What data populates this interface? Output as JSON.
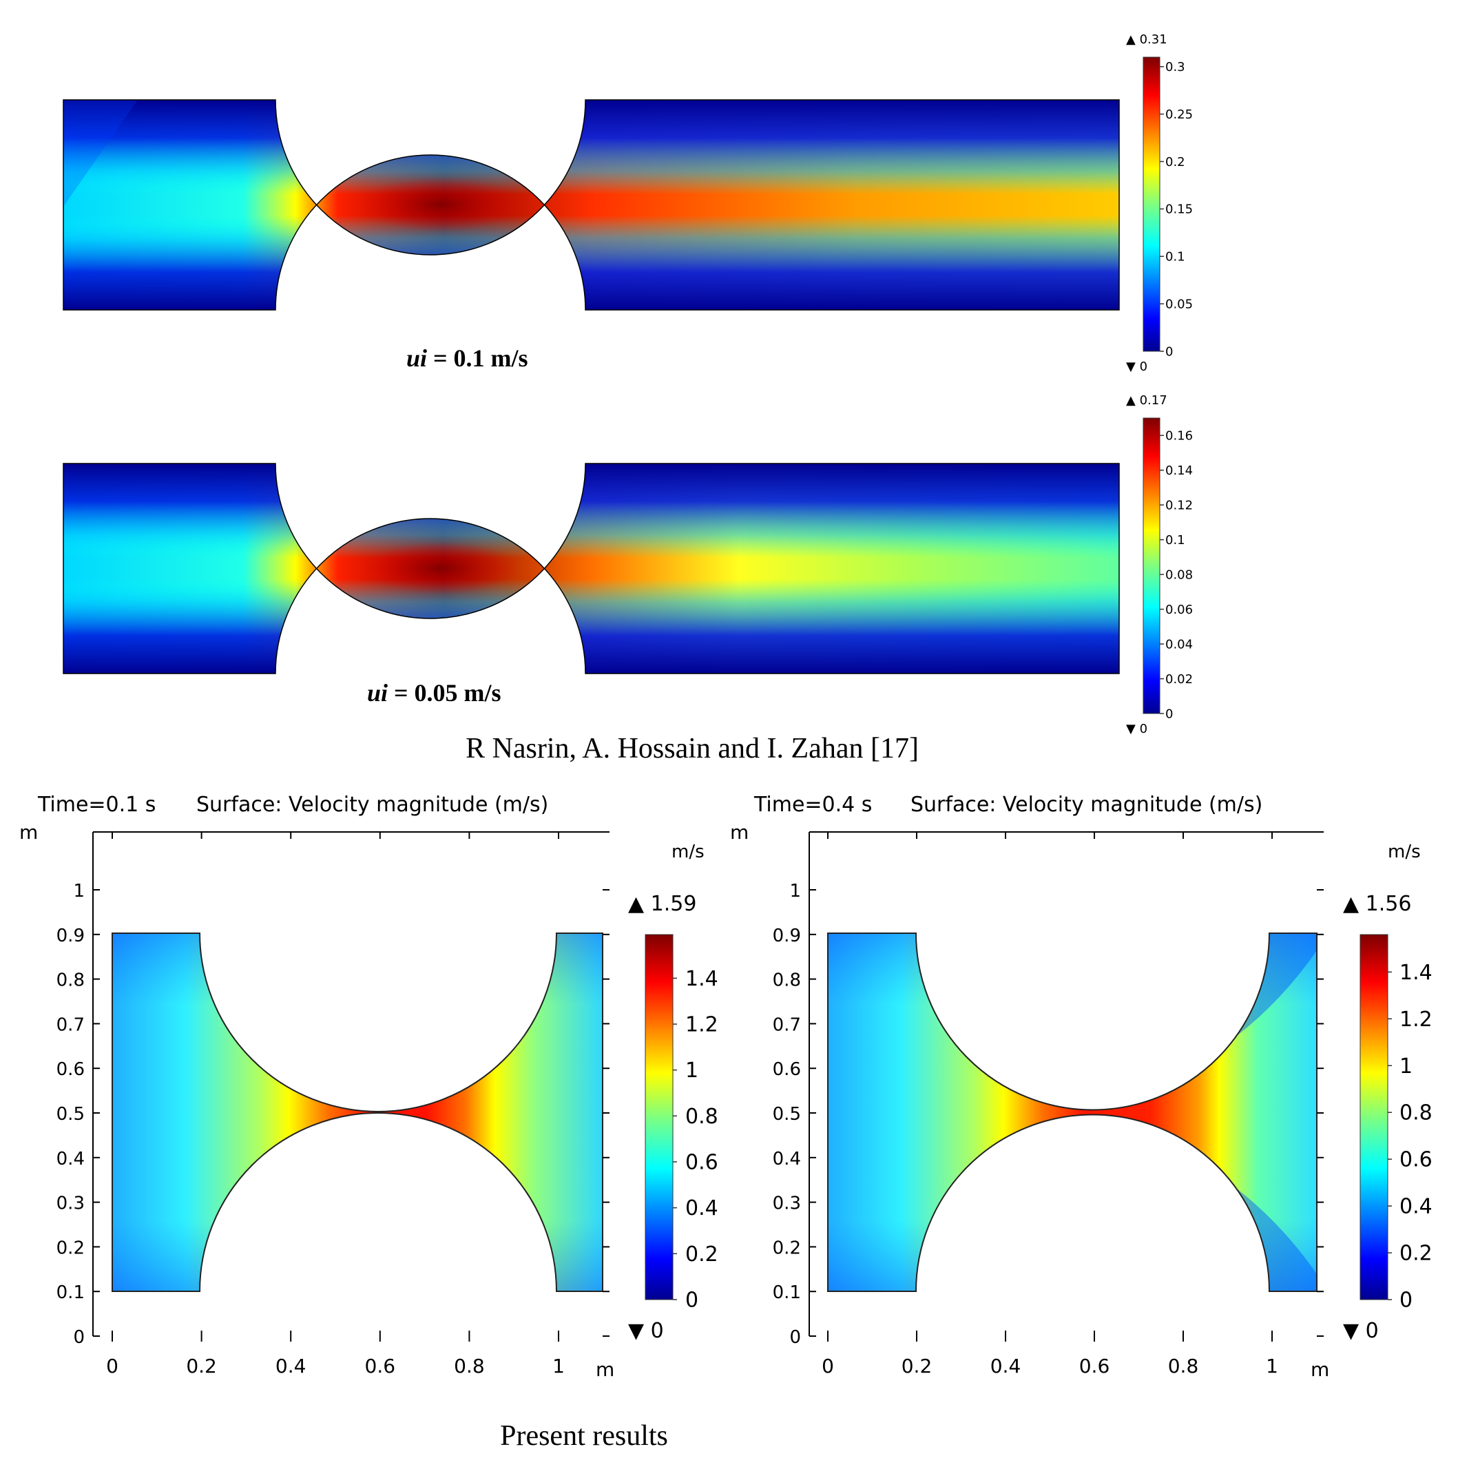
{
  "top_caption": "R Nasrin, A. Hossain and I. Zahan [17]",
  "bottom_caption": "Present results",
  "colors": {
    "jet": [
      "#00008f",
      "#0000ff",
      "#007fff",
      "#00ffff",
      "#7fff7f",
      "#ffff00",
      "#ff7f00",
      "#ff0000",
      "#7f0000"
    ]
  },
  "chart_data": [
    {
      "type": "heatmap",
      "title": "",
      "panel_label_italic": "ui",
      "panel_label_rest": " = 0.1 m/s",
      "colorbar": {
        "ticks": [
          "0.3",
          "0.25",
          "0.2",
          "0.15",
          "0.1",
          "0.05",
          "0"
        ],
        "max_label": "▲ 0.31",
        "min_label": "▼ 0",
        "range": [
          0,
          0.31
        ]
      }
    },
    {
      "type": "heatmap",
      "title": "",
      "panel_label_italic": "ui",
      "panel_label_rest": " = 0.05 m/s",
      "colorbar": {
        "ticks": [
          "0.16",
          "0.14",
          "0.12",
          "0.1",
          "0.08",
          "0.06",
          "0.04",
          "0.02",
          "0"
        ],
        "max_label": "▲ 0.17",
        "min_label": "▼ 0",
        "range": [
          0,
          0.17
        ]
      }
    },
    {
      "type": "heatmap",
      "time_label": "Time=0.1 s",
      "title": "Surface: Velocity magnitude (m/s)",
      "yunit": "m",
      "xunit": "m",
      "colorbar_unit": "m/s",
      "xticks": [
        "0",
        "0.2",
        "0.4",
        "0.6",
        "0.8",
        "1"
      ],
      "yticks": [
        "0",
        "0.1",
        "0.2",
        "0.3",
        "0.4",
        "0.5",
        "0.6",
        "0.7",
        "0.8",
        "0.9",
        "1"
      ],
      "xlim": [
        0,
        1.1
      ],
      "ylim": [
        0,
        1.1
      ],
      "colorbar": {
        "ticks": [
          "1.4",
          "1.2",
          "1",
          "0.8",
          "0.6",
          "0.4",
          "0.2",
          "0"
        ],
        "max_label": "▲ 1.59",
        "min_label": "▼ 0",
        "range": [
          0,
          1.59
        ]
      }
    },
    {
      "type": "heatmap",
      "time_label": "Time=0.4 s",
      "title": "Surface: Velocity magnitude (m/s)",
      "yunit": "m",
      "xunit": "m",
      "colorbar_unit": "m/s",
      "xticks": [
        "0",
        "0.2",
        "0.4",
        "0.6",
        "0.8",
        "1"
      ],
      "yticks": [
        "0",
        "0.1",
        "0.2",
        "0.3",
        "0.4",
        "0.5",
        "0.6",
        "0.7",
        "0.8",
        "0.9",
        "1"
      ],
      "xlim": [
        0,
        1.1
      ],
      "ylim": [
        0,
        1.1
      ],
      "colorbar": {
        "ticks": [
          "1.4",
          "1.2",
          "1",
          "0.8",
          "0.6",
          "0.4",
          "0.2",
          "0"
        ],
        "max_label": "▲ 1.56",
        "min_label": "▼ 0",
        "range": [
          0,
          1.56
        ]
      }
    }
  ]
}
